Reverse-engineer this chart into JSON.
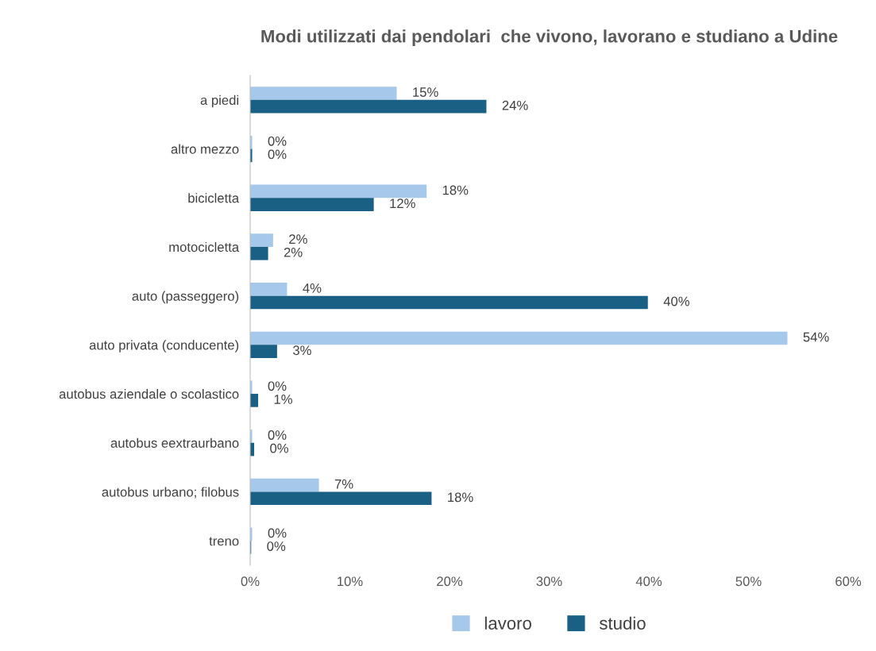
{
  "chart_data": {
    "type": "bar",
    "orientation": "horizontal",
    "title": "Modi utilizzati dai pendolari  che vivono, lavorano e studiano a Udine",
    "categories": [
      "a piedi",
      "altro mezzo",
      "bicicletta",
      "motocicletta",
      "auto (passeggero)",
      "auto privata (conducente)",
      "autobus aziendale o scolastico",
      "autobus eextraurbano",
      "autobus urbano; filobus",
      "treno"
    ],
    "series": [
      {
        "name": "lavoro",
        "color": "#a6c8ea",
        "values": [
          14.7,
          0.2,
          17.7,
          2.3,
          3.7,
          53.9,
          0.2,
          0.2,
          6.9,
          0.2
        ],
        "value_labels": [
          "15%",
          "0%",
          "18%",
          "2%",
          "4%",
          "54%",
          "0%",
          "0%",
          "7%",
          "0%"
        ]
      },
      {
        "name": "studio",
        "color": "#1a5f84",
        "values": [
          23.7,
          0.2,
          12.4,
          1.8,
          39.9,
          2.7,
          0.8,
          0.4,
          18.2,
          0.1
        ],
        "value_labels": [
          "24%",
          "0%",
          "12%",
          "2%",
          "40%",
          "3%",
          "1%",
          "0%",
          "18%",
          "0%"
        ]
      }
    ],
    "xlim": [
      0,
      60
    ],
    "xticks": [
      {
        "value": 0,
        "label": "0%"
      },
      {
        "value": 10,
        "label": "10%"
      },
      {
        "value": 20,
        "label": "20%"
      },
      {
        "value": 30,
        "label": "30%"
      },
      {
        "value": 40,
        "label": "40%"
      },
      {
        "value": 50,
        "label": "50%"
      },
      {
        "value": 60,
        "label": "60%"
      }
    ],
    "legend": "bottom",
    "grid": false
  }
}
